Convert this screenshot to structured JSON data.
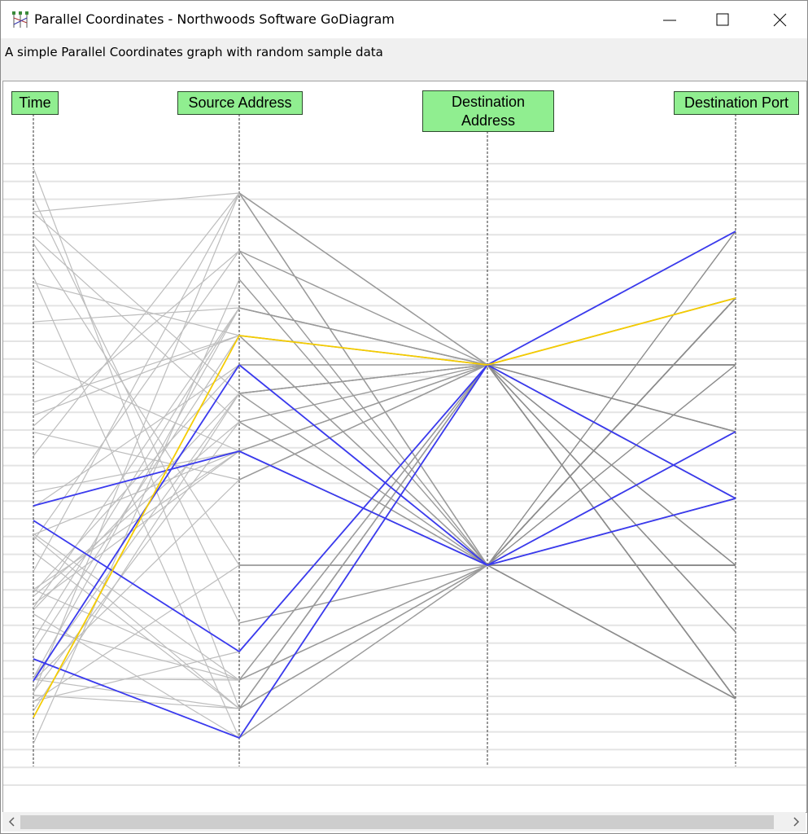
{
  "window": {
    "title": "Parallel Coordinates - Northwoods Software GoDiagram"
  },
  "description": "A simple Parallel Coordinates graph with random sample data",
  "axes": [
    {
      "label": "Time"
    },
    {
      "label": "Source Address"
    },
    {
      "label": "Destination Address"
    },
    {
      "label": "Destination Port"
    }
  ]
}
